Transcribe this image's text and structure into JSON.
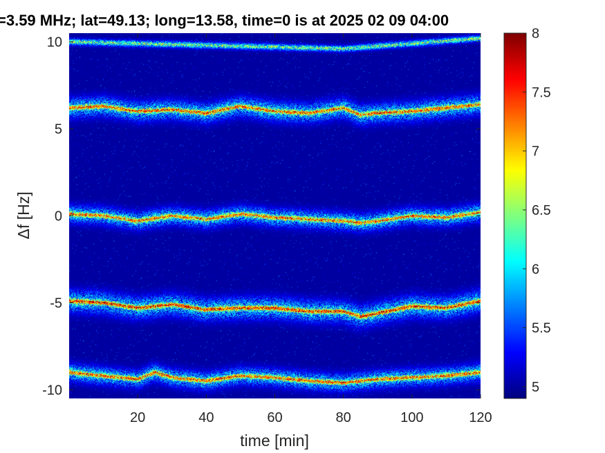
{
  "chart_data": {
    "type": "heatmap",
    "title": "=3.59 MHz;  lat=49.13; long=13.58, time=0 is at 2025 02 09 04:00",
    "xlabel": "time [min]",
    "ylabel": "Δf [Hz]",
    "xlim": [
      0,
      120
    ],
    "ylim": [
      -10.5,
      10.5
    ],
    "xticks": [
      20,
      40,
      60,
      80,
      100,
      120
    ],
    "xtick_labels": [
      "20",
      "40",
      "60",
      "80",
      "100",
      "120"
    ],
    "yticks": [
      -10,
      -5,
      0,
      5,
      10
    ],
    "ytick_labels": [
      "-10",
      "-5",
      "0",
      "5",
      "10"
    ],
    "colorbar": {
      "clim": [
        4.9,
        8
      ],
      "ticks": [
        5,
        5.5,
        6,
        6.5,
        7,
        7.5,
        8
      ],
      "tick_labels": [
        "5",
        "5.5",
        "6",
        "6.5",
        "7",
        "7.5",
        "8"
      ],
      "colormap": "jet"
    },
    "background_level": 5.0,
    "grid": false,
    "bands": [
      {
        "center_points": [
          [
            0,
            6.2
          ],
          [
            10,
            6.3
          ],
          [
            20,
            6.0
          ],
          [
            30,
            6.1
          ],
          [
            40,
            5.9
          ],
          [
            50,
            6.3
          ],
          [
            60,
            6.0
          ],
          [
            70,
            5.9
          ],
          [
            80,
            6.2
          ],
          [
            85,
            5.8
          ],
          [
            90,
            5.9
          ],
          [
            100,
            6.0
          ],
          [
            110,
            6.2
          ],
          [
            120,
            6.4
          ]
        ],
        "half_width": 0.9,
        "peak": 6.9
      },
      {
        "center_points": [
          [
            0,
            0.1
          ],
          [
            10,
            0.0
          ],
          [
            20,
            -0.3
          ],
          [
            30,
            0.0
          ],
          [
            40,
            -0.2
          ],
          [
            50,
            0.1
          ],
          [
            60,
            -0.1
          ],
          [
            70,
            -0.2
          ],
          [
            80,
            -0.3
          ],
          [
            85,
            -0.4
          ],
          [
            90,
            -0.3
          ],
          [
            100,
            0.0
          ],
          [
            110,
            -0.1
          ],
          [
            120,
            0.2
          ]
        ],
        "half_width": 0.8,
        "peak": 6.8
      },
      {
        "center_points": [
          [
            0,
            -4.9
          ],
          [
            10,
            -5.0
          ],
          [
            20,
            -5.3
          ],
          [
            30,
            -5.1
          ],
          [
            40,
            -5.4
          ],
          [
            50,
            -5.3
          ],
          [
            60,
            -5.3
          ],
          [
            70,
            -5.5
          ],
          [
            80,
            -5.5
          ],
          [
            85,
            -5.8
          ],
          [
            90,
            -5.6
          ],
          [
            100,
            -5.2
          ],
          [
            110,
            -5.3
          ],
          [
            120,
            -4.9
          ]
        ],
        "half_width": 1.0,
        "peak": 7.2
      },
      {
        "center_points": [
          [
            0,
            -9.0
          ],
          [
            10,
            -9.2
          ],
          [
            20,
            -9.4
          ],
          [
            25,
            -9.0
          ],
          [
            30,
            -9.3
          ],
          [
            40,
            -9.5
          ],
          [
            50,
            -9.2
          ],
          [
            60,
            -9.3
          ],
          [
            70,
            -9.5
          ],
          [
            80,
            -9.6
          ],
          [
            90,
            -9.4
          ],
          [
            100,
            -9.3
          ],
          [
            110,
            -9.2
          ],
          [
            120,
            -9.0
          ]
        ],
        "half_width": 0.8,
        "peak": 6.9
      },
      {
        "center_points": [
          [
            0,
            10.0
          ],
          [
            40,
            9.8
          ],
          [
            80,
            9.6
          ],
          [
            120,
            10.2
          ]
        ],
        "half_width": 0.3,
        "peak": 5.6
      }
    ]
  }
}
